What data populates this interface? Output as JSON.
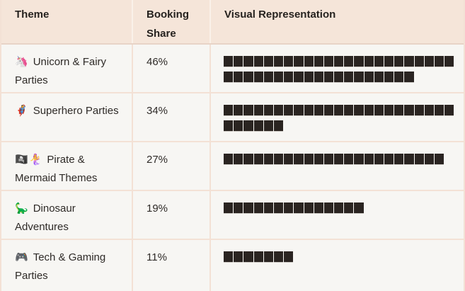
{
  "table": {
    "columns": [
      {
        "label": "Theme"
      },
      {
        "label": "Booking Share"
      },
      {
        "label": "Visual Representation"
      }
    ],
    "rows": [
      {
        "emoji": "🦄",
        "theme": "Unicorn & Fairy Parties",
        "share": "46%",
        "blocks": 42
      },
      {
        "emoji": "🦸",
        "theme": "Superhero Parties",
        "share": "34%",
        "blocks": 29
      },
      {
        "emoji": "🏴‍☠️🧜‍♀️",
        "theme": "Pirate & Mermaid Themes",
        "share": "27%",
        "blocks": 22
      },
      {
        "emoji": "🦕",
        "theme": "Dinosaur Adventures",
        "share": "19%",
        "blocks": 14
      },
      {
        "emoji": "🎮",
        "theme": "Tech & Gaming Parties",
        "share": "11%",
        "blocks": 7
      }
    ]
  },
  "chart_data": {
    "type": "bar",
    "categories": [
      "Unicorn & Fairy Parties",
      "Superhero Parties",
      "Pirate & Mermaid Themes",
      "Dinosaur Adventures",
      "Tech & Gaming Parties"
    ],
    "values": [
      46,
      34,
      27,
      19,
      11
    ],
    "value_labels": [
      "46%",
      "34%",
      "27%",
      "19%",
      "11%"
    ],
    "block_counts": [
      42,
      29,
      22,
      14,
      7
    ],
    "title": "",
    "xlabel": "Theme",
    "ylabel": "Booking Share",
    "legend": false,
    "orientation": "horizontal"
  },
  "colors": {
    "header_bg": "#f5e5d9",
    "row_bg": "#f7f6f3",
    "grid_border": "#f3e1d5",
    "header_divider": "#faf1e9",
    "header_bottom_border": "#e8d4c7",
    "bar_block": "#2a2421",
    "text": "#2e2a27"
  }
}
